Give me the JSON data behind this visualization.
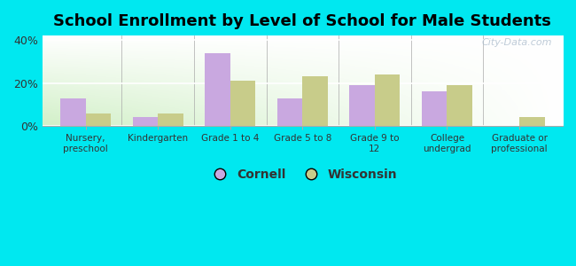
{
  "title": "School Enrollment by Level of School for Male Students",
  "categories": [
    "Nursery,\npreschool",
    "Kindergarten",
    "Grade 1 to 4",
    "Grade 5 to 8",
    "Grade 9 to\n12",
    "College\nundergrad",
    "Graduate or\nprofessional"
  ],
  "cornell": [
    13,
    4,
    34,
    13,
    19,
    16,
    0
  ],
  "wisconsin": [
    6,
    6,
    21,
    23,
    24,
    19,
    4
  ],
  "cornell_color": "#c9a8e0",
  "wisconsin_color": "#c8cc8a",
  "background_outer": "#00e8f0",
  "ylim": [
    0,
    42
  ],
  "yticks": [
    0,
    20,
    40
  ],
  "ytick_labels": [
    "0%",
    "20%",
    "40%"
  ],
  "title_fontsize": 13,
  "legend_labels": [
    "Cornell",
    "Wisconsin"
  ],
  "watermark": "City-Data.com"
}
